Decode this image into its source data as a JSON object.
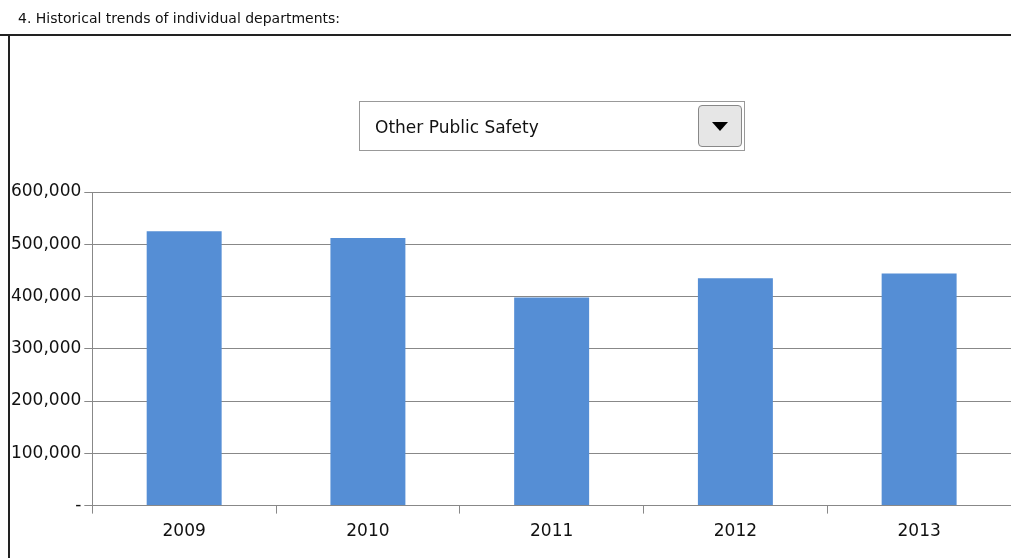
{
  "chart_data": {
    "type": "bar",
    "title": "4. Historical trends of individual departments:",
    "subtitle": "Other Public Safety",
    "categories": [
      "2009",
      "2010",
      "2011",
      "2012",
      "2013"
    ],
    "values": [
      525000,
      512000,
      398000,
      435000,
      444000
    ],
    "color": "#558ed5",
    "ylim": [
      0,
      600000
    ],
    "yticks": [
      {
        "value": 0,
        "label": "-"
      },
      {
        "value": 100000,
        "label": "100,000"
      },
      {
        "value": 200000,
        "label": "200,000"
      },
      {
        "value": 300000,
        "label": "300,000"
      },
      {
        "value": 400000,
        "label": "400,000"
      },
      {
        "value": 500000,
        "label": "500,000"
      },
      {
        "value": 600000,
        "label": "600,000"
      }
    ],
    "grid": "y",
    "legend": false
  }
}
